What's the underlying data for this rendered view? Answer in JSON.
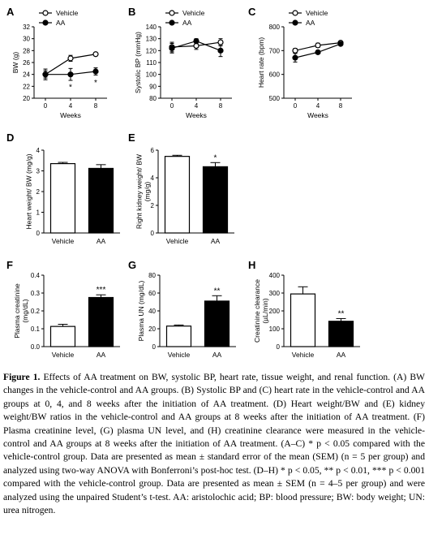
{
  "figure": {
    "chart_data": [
      {
        "id": "A",
        "type": "line",
        "letter": "A",
        "xlabel": "Weeks",
        "ylabel": "BW (g)",
        "x": [
          0,
          4,
          8
        ],
        "xticks": [
          "0",
          "4",
          "8"
        ],
        "ylim": [
          20,
          32
        ],
        "yticks": [
          "20",
          "22",
          "24",
          "26",
          "28",
          "30",
          "32"
        ],
        "series": [
          {
            "name": "Vehicle",
            "marker": "open",
            "values": [
              24.0,
              26.7,
              27.4
            ],
            "err": [
              0.6,
              0.5,
              0.3
            ]
          },
          {
            "name": "AA",
            "marker": "filled",
            "values": [
              24.0,
              24.0,
              24.5
            ],
            "err": [
              0.9,
              1.0,
              0.6
            ]
          }
        ],
        "annotations": [
          {
            "x": 4,
            "y": 22.0,
            "text": "*"
          },
          {
            "x": 8,
            "y": 22.7,
            "text": "*"
          }
        ],
        "legend": "top"
      },
      {
        "id": "B",
        "type": "line",
        "letter": "B",
        "xlabel": "Weeks",
        "ylabel": "Systolic BP (mmHg)",
        "x": [
          0,
          4,
          8
        ],
        "xticks": [
          "0",
          "4",
          "8"
        ],
        "ylim": [
          80,
          140
        ],
        "yticks": [
          "80",
          "90",
          "100",
          "110",
          "120",
          "130",
          "140"
        ],
        "series": [
          {
            "name": "Vehicle",
            "marker": "open",
            "values": [
              123,
              124,
              127
            ],
            "err": [
              4,
              3,
              3
            ]
          },
          {
            "name": "AA",
            "marker": "filled",
            "values": [
              122,
              128,
              120
            ],
            "err": [
              4,
              2,
              5
            ]
          }
        ],
        "annotations": [],
        "legend": "top"
      },
      {
        "id": "C",
        "type": "line",
        "letter": "C",
        "xlabel": "Weeks",
        "ylabel": "Heart rate (bpm)",
        "x": [
          0,
          4,
          8
        ],
        "xticks": [
          "0",
          "4",
          "8"
        ],
        "ylim": [
          500,
          800
        ],
        "yticks": [
          "500",
          "600",
          "700",
          "800"
        ],
        "series": [
          {
            "name": "Vehicle",
            "marker": "open",
            "values": [
              700,
              722,
              733
            ],
            "err": [
              9,
              9,
              6
            ]
          },
          {
            "name": "AA",
            "marker": "filled",
            "values": [
              670,
              693,
              728
            ],
            "err": [
              18,
              6,
              6
            ]
          }
        ],
        "annotations": [],
        "legend": "top"
      },
      {
        "id": "D",
        "type": "bar",
        "letter": "D",
        "ylabel": "Heart weight/ BW (mg/g)",
        "categories": [
          "Vehicle",
          "AA"
        ],
        "fills": [
          "#ffffff",
          "#000000"
        ],
        "values": [
          3.35,
          3.12
        ],
        "err": [
          0.06,
          0.18
        ],
        "ylim": [
          0,
          4
        ],
        "yticks": [
          "0",
          "1",
          "2",
          "3",
          "4"
        ],
        "stars": [
          "",
          ""
        ]
      },
      {
        "id": "E",
        "type": "bar",
        "letter": "E",
        "ylabel": [
          "Right kidney weight/ BW",
          "(mg/g)"
        ],
        "categories": [
          "Vehicle",
          "AA"
        ],
        "fills": [
          "#ffffff",
          "#000000"
        ],
        "values": [
          5.55,
          4.8
        ],
        "err": [
          0.08,
          0.3
        ],
        "ylim": [
          0,
          6
        ],
        "yticks": [
          "0",
          "2",
          "4",
          "6"
        ],
        "stars": [
          "",
          "*"
        ]
      },
      {
        "id": "F",
        "type": "bar",
        "letter": "F",
        "ylabel": [
          "Plasma creatinine",
          "(mg/dL)"
        ],
        "categories": [
          "Vehicle",
          "AA"
        ],
        "fills": [
          "#ffffff",
          "#000000"
        ],
        "values": [
          0.113,
          0.275
        ],
        "err": [
          0.012,
          0.015
        ],
        "ylim": [
          0,
          0.4
        ],
        "yticks": [
          "0.0",
          "0.1",
          "0.2",
          "0.3",
          "0.4"
        ],
        "stars": [
          "",
          "***"
        ]
      },
      {
        "id": "G",
        "type": "bar",
        "letter": "G",
        "ylabel": "Plasma UN (mg/dL)",
        "categories": [
          "Vehicle",
          "AA"
        ],
        "fills": [
          "#ffffff",
          "#000000"
        ],
        "values": [
          23,
          51
        ],
        "err": [
          1.2,
          6
        ],
        "ylim": [
          0,
          80
        ],
        "yticks": [
          "0",
          "20",
          "40",
          "60",
          "80"
        ],
        "stars": [
          "",
          "**"
        ]
      },
      {
        "id": "H",
        "type": "bar",
        "letter": "H",
        "ylabel": [
          "Creatinine clearance",
          "(µL/min)"
        ],
        "categories": [
          "Vehicle",
          "AA"
        ],
        "fills": [
          "#ffffff",
          "#000000"
        ],
        "values": [
          295,
          142
        ],
        "err": [
          40,
          15
        ],
        "ylim": [
          0,
          400
        ],
        "yticks": [
          "0",
          "100",
          "200",
          "300",
          "400"
        ],
        "stars": [
          "",
          "**"
        ]
      }
    ]
  },
  "caption": {
    "label": "Figure 1.",
    "lines": [
      " Effects of AA treatment on BW, systolic BP, heart rate, tissue weight, and renal function. (A) BW changes in the vehicle-control and AA groups. (B) Systolic BP and (C) heart rate in the vehicle-control and AA groups at 0, 4, and 8 weeks after the initiation of AA treatment. (D) Heart weight/BW and (E) kidney weight/BW ratios in the vehicle-control and AA groups at 8 weeks after the initiation of AA treatment. (F) Plasma creatinine level, (G) plasma UN level, and (H) creatinine clearance were measured in the vehicle-control and AA groups at 8 weeks after the initiation of AA treatment. (A–C) * p < 0.05 compared with the vehicle-control group. Data are presented as mean ± standard error of the mean (SEM) (n = 5 per group) and analyzed using two-way ANOVA with Bonferroni’s post-hoc test. (D–H) * p < 0.05, ** p < 0.01, *** p < 0.001 compared with the vehicle-control group. Data are presented as mean ± SEM (n = 4–5 per group) and were analyzed using the unpaired Student’s t-test. AA: aristolochic acid; BP: blood pressure; BW: body weight; UN: urea nitrogen."
    ]
  }
}
